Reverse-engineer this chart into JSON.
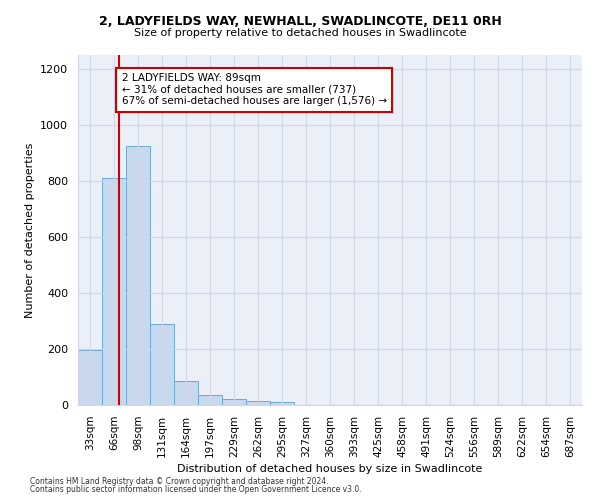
{
  "title": "2, LADYFIELDS WAY, NEWHALL, SWADLINCOTE, DE11 0RH",
  "subtitle": "Size of property relative to detached houses in Swadlincote",
  "xlabel": "Distribution of detached houses by size in Swadlincote",
  "ylabel": "Number of detached properties",
  "categories": [
    "33sqm",
    "66sqm",
    "98sqm",
    "131sqm",
    "164sqm",
    "197sqm",
    "229sqm",
    "262sqm",
    "295sqm",
    "327sqm",
    "360sqm",
    "393sqm",
    "425sqm",
    "458sqm",
    "491sqm",
    "524sqm",
    "556sqm",
    "589sqm",
    "622sqm",
    "654sqm",
    "687sqm"
  ],
  "bar_values": [
    195,
    810,
    925,
    290,
    85,
    35,
    20,
    15,
    10,
    0,
    0,
    0,
    0,
    0,
    0,
    0,
    0,
    0,
    0,
    0,
    0
  ],
  "bar_color": "#c8d9ef",
  "bar_edge_color": "#6aaad4",
  "annotation_text": "2 LADYFIELDS WAY: 89sqm\n← 31% of detached houses are smaller (737)\n67% of semi-detached houses are larger (1,576) →",
  "annotation_box_color": "#ffffff",
  "annotation_box_edge": "#cc0000",
  "vline_color": "#cc0000",
  "ylim": [
    0,
    1250
  ],
  "yticks": [
    0,
    200,
    400,
    600,
    800,
    1000,
    1200
  ],
  "grid_color": "#d0d8e8",
  "bg_color": "#eaeff8",
  "footer1": "Contains HM Land Registry data © Crown copyright and database right 2024.",
  "footer2": "Contains public sector information licensed under the Open Government Licence v3.0."
}
